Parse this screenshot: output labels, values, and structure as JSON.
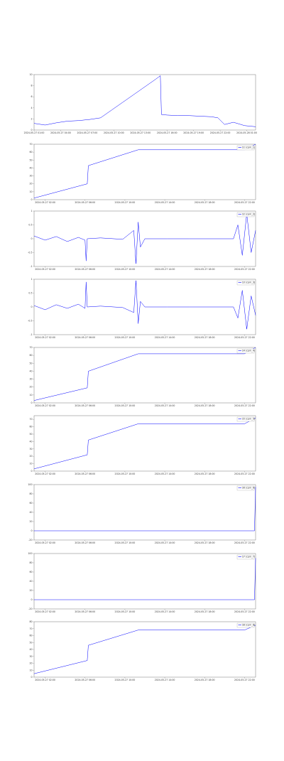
{
  "chart_data": [
    {
      "type": "line",
      "x": [
        0,
        5,
        10,
        15,
        20,
        25,
        30,
        35,
        40,
        45,
        50,
        55,
        57,
        57.5,
        60,
        65,
        70,
        75,
        80,
        83,
        86,
        90,
        95,
        100
      ],
      "series": [
        {
          "color": "#0000ff",
          "values": [
            1.2,
            0.9,
            1.3,
            1.6,
            1.7,
            1.9,
            2.2,
            3.6,
            5.0,
            6.4,
            7.8,
            9.2,
            9.8,
            2.8,
            2.7,
            2.6,
            2.6,
            2.5,
            2.4,
            2.2,
            1.0,
            1.4,
            0.8,
            0.6
          ]
        }
      ],
      "xlim": [
        0,
        100
      ],
      "ylim": [
        0,
        10
      ],
      "yticks": [
        0,
        2,
        4,
        6,
        8,
        10
      ],
      "xticks": [
        {
          "value": 0,
          "label": "2024-05-27 01:00"
        },
        {
          "value": 12,
          "label": "2024-05-27 04:00"
        },
        {
          "value": 24,
          "label": "2024-05-27 07:00"
        },
        {
          "value": 36,
          "label": "2024-05-27 10:00"
        },
        {
          "value": 48,
          "label": "2024-05-27 13:00"
        },
        {
          "value": 60,
          "label": "2024-05-27 16:00"
        },
        {
          "value": 72,
          "label": "2024-05-27 19:00"
        },
        {
          "value": 84,
          "label": "2024-05-27 22:00"
        },
        {
          "value": 96,
          "label": "2024-05-28 01:00"
        }
      ]
    },
    {
      "type": "line",
      "x": [
        0,
        24,
        24.5,
        47,
        95,
        100
      ],
      "series": [
        {
          "name": "S1 (cpm_1)",
          "color": "#0000ff",
          "values": [
            2,
            20,
            43,
            63,
            63,
            70
          ]
        }
      ],
      "xlim": [
        0,
        100
      ],
      "ylim": [
        0,
        70
      ],
      "yticks": [
        0,
        10,
        20,
        30,
        40,
        50,
        60,
        70
      ],
      "xticks": [
        {
          "value": 5,
          "label": "2024-05-27 02:00"
        },
        {
          "value": 23,
          "label": "2024-05-27 06:00"
        },
        {
          "value": 41,
          "label": "2024-05-27 10:00"
        },
        {
          "value": 59,
          "label": "2024-05-27 14:00"
        },
        {
          "value": 77,
          "label": "2024-05-27 18:00"
        },
        {
          "value": 95,
          "label": "2024-05-27 22:00"
        }
      ]
    },
    {
      "type": "line",
      "x": [
        0,
        5,
        10,
        15,
        20,
        23,
        23.5,
        24,
        30,
        40,
        45,
        46,
        47,
        48,
        50,
        60,
        70,
        90,
        92,
        94,
        96,
        98,
        100
      ],
      "series": [
        {
          "name": "S2 (cpm_2)",
          "color": "#0000ff",
          "values": [
            0.1,
            -0.05,
            0.08,
            -0.1,
            0.05,
            -0.05,
            -0.8,
            0,
            0.03,
            -0.02,
            0.3,
            -0.9,
            0.6,
            -0.3,
            0,
            0,
            0,
            0,
            0.5,
            -0.6,
            0.9,
            -0.5,
            0.3
          ]
        }
      ],
      "xlim": [
        0,
        100
      ],
      "ylim": [
        -1,
        1
      ],
      "yticks": [
        -1,
        -0.5,
        0,
        0.5,
        1
      ],
      "xticks": [
        {
          "value": 5,
          "label": "2024-05-27 02:00"
        },
        {
          "value": 23,
          "label": "2024-05-27 06:00"
        },
        {
          "value": 41,
          "label": "2024-05-27 10:00"
        },
        {
          "value": 59,
          "label": "2024-05-27 14:00"
        },
        {
          "value": 77,
          "label": "2024-05-27 18:00"
        },
        {
          "value": 95,
          "label": "2024-05-27 22:00"
        }
      ]
    },
    {
      "type": "line",
      "x": [
        0,
        5,
        10,
        15,
        20,
        23,
        23.5,
        24,
        30,
        40,
        45,
        46,
        47,
        48,
        50,
        60,
        70,
        90,
        92,
        94,
        96,
        98,
        100
      ],
      "series": [
        {
          "name": "S3 (cpm_3)",
          "color": "#0000ff",
          "values": [
            0.05,
            -0.1,
            0.08,
            -0.05,
            0.1,
            -0.05,
            0.9,
            0,
            0.03,
            -0.02,
            -0.2,
            0.95,
            -0.6,
            0.2,
            0,
            0,
            0,
            0,
            -0.4,
            0.6,
            -0.8,
            0.4,
            -0.3
          ]
        }
      ],
      "xlim": [
        0,
        100
      ],
      "ylim": [
        -1,
        1
      ],
      "yticks": [
        -1,
        -0.5,
        0,
        0.5,
        1
      ],
      "xticks": [
        {
          "value": 5,
          "label": "2024-05-27 02:00"
        },
        {
          "value": 23,
          "label": "2024-05-27 06:00"
        },
        {
          "value": 41,
          "label": "2024-05-27 10:00"
        },
        {
          "value": 59,
          "label": "2024-05-27 14:00"
        },
        {
          "value": 77,
          "label": "2024-05-27 18:00"
        },
        {
          "value": 95,
          "label": "2024-05-27 22:00"
        }
      ]
    },
    {
      "type": "line",
      "x": [
        0,
        24,
        24.5,
        47,
        95,
        100
      ],
      "series": [
        {
          "name": "S4 (cpm_4)",
          "color": "#0000ff",
          "values": [
            3,
            19,
            40,
            62,
            62,
            70
          ]
        }
      ],
      "xlim": [
        0,
        100
      ],
      "ylim": [
        0,
        70
      ],
      "yticks": [
        0,
        10,
        20,
        30,
        40,
        50,
        60,
        70
      ],
      "xticks": [
        {
          "value": 5,
          "label": "2024-05-27 02:00"
        },
        {
          "value": 23,
          "label": "2024-05-27 06:00"
        },
        {
          "value": 41,
          "label": "2024-05-27 10:00"
        },
        {
          "value": 59,
          "label": "2024-05-27 14:00"
        },
        {
          "value": 77,
          "label": "2024-05-27 18:00"
        },
        {
          "value": 95,
          "label": "2024-05-27 22:00"
        }
      ]
    },
    {
      "type": "line",
      "x": [
        0,
        24,
        24.5,
        47,
        95,
        100
      ],
      "series": [
        {
          "name": "S5 (cpm_5)",
          "color": "#0000ff",
          "values": [
            3,
            22,
            42,
            64,
            64,
            72
          ]
        }
      ],
      "xlim": [
        0,
        100
      ],
      "ylim": [
        0,
        75
      ],
      "yticks": [
        0,
        10,
        20,
        30,
        40,
        50,
        60,
        70
      ],
      "xticks": [
        {
          "value": 5,
          "label": "2024-05-27 02:00"
        },
        {
          "value": 23,
          "label": "2024-05-27 06:00"
        },
        {
          "value": 41,
          "label": "2024-05-27 10:00"
        },
        {
          "value": 59,
          "label": "2024-05-27 14:00"
        },
        {
          "value": 77,
          "label": "2024-05-27 18:00"
        },
        {
          "value": 95,
          "label": "2024-05-27 22:00"
        }
      ]
    },
    {
      "type": "line",
      "x": [
        0,
        99.5,
        100
      ],
      "series": [
        {
          "name": "S6 (cpm_6)",
          "color": "#0000ff",
          "values": [
            0,
            0,
            95
          ]
        }
      ],
      "xlim": [
        0,
        100
      ],
      "ylim": [
        -20,
        100
      ],
      "yticks": [
        -20,
        0,
        20,
        40,
        60,
        80,
        100
      ],
      "xticks": [
        {
          "value": 5,
          "label": "2024-05-27 02:00"
        },
        {
          "value": 23,
          "label": "2024-05-27 06:00"
        },
        {
          "value": 41,
          "label": "2024-05-27 10:00"
        },
        {
          "value": 59,
          "label": "2024-05-27 14:00"
        },
        {
          "value": 77,
          "label": "2024-05-27 18:00"
        },
        {
          "value": 95,
          "label": "2024-05-27 22:00"
        }
      ]
    },
    {
      "type": "line",
      "x": [
        0,
        99.5,
        100
      ],
      "series": [
        {
          "name": "S7 (cpm_7)",
          "color": "#0000ff",
          "values": [
            0,
            0,
            90
          ]
        }
      ],
      "xlim": [
        0,
        100
      ],
      "ylim": [
        -20,
        100
      ],
      "yticks": [
        -20,
        0,
        20,
        40,
        60,
        80,
        100
      ],
      "xticks": [
        {
          "value": 5,
          "label": "2024-05-27 02:00"
        },
        {
          "value": 23,
          "label": "2024-05-27 06:00"
        },
        {
          "value": 41,
          "label": "2024-05-27 10:00"
        },
        {
          "value": 59,
          "label": "2024-05-27 14:00"
        },
        {
          "value": 77,
          "label": "2024-05-27 18:00"
        },
        {
          "value": 95,
          "label": "2024-05-27 22:00"
        }
      ]
    },
    {
      "type": "line",
      "x": [
        0,
        24,
        24.5,
        47,
        95,
        100
      ],
      "series": [
        {
          "name": "S8 (cpm_8)",
          "color": "#0000ff",
          "values": [
            5,
            24,
            46,
            68,
            68,
            75
          ]
        }
      ],
      "xlim": [
        0,
        100
      ],
      "ylim": [
        0,
        80
      ],
      "yticks": [
        0,
        10,
        20,
        30,
        40,
        50,
        60,
        70,
        80
      ],
      "xticks": [
        {
          "value": 5,
          "label": "2024-05-27 02:00"
        },
        {
          "value": 23,
          "label": "2024-05-27 06:00"
        },
        {
          "value": 41,
          "label": "2024-05-27 10:00"
        },
        {
          "value": 59,
          "label": "2024-05-27 14:00"
        },
        {
          "value": 77,
          "label": "2024-05-27 18:00"
        },
        {
          "value": 95,
          "label": "2024-05-27 22:00"
        }
      ]
    }
  ]
}
